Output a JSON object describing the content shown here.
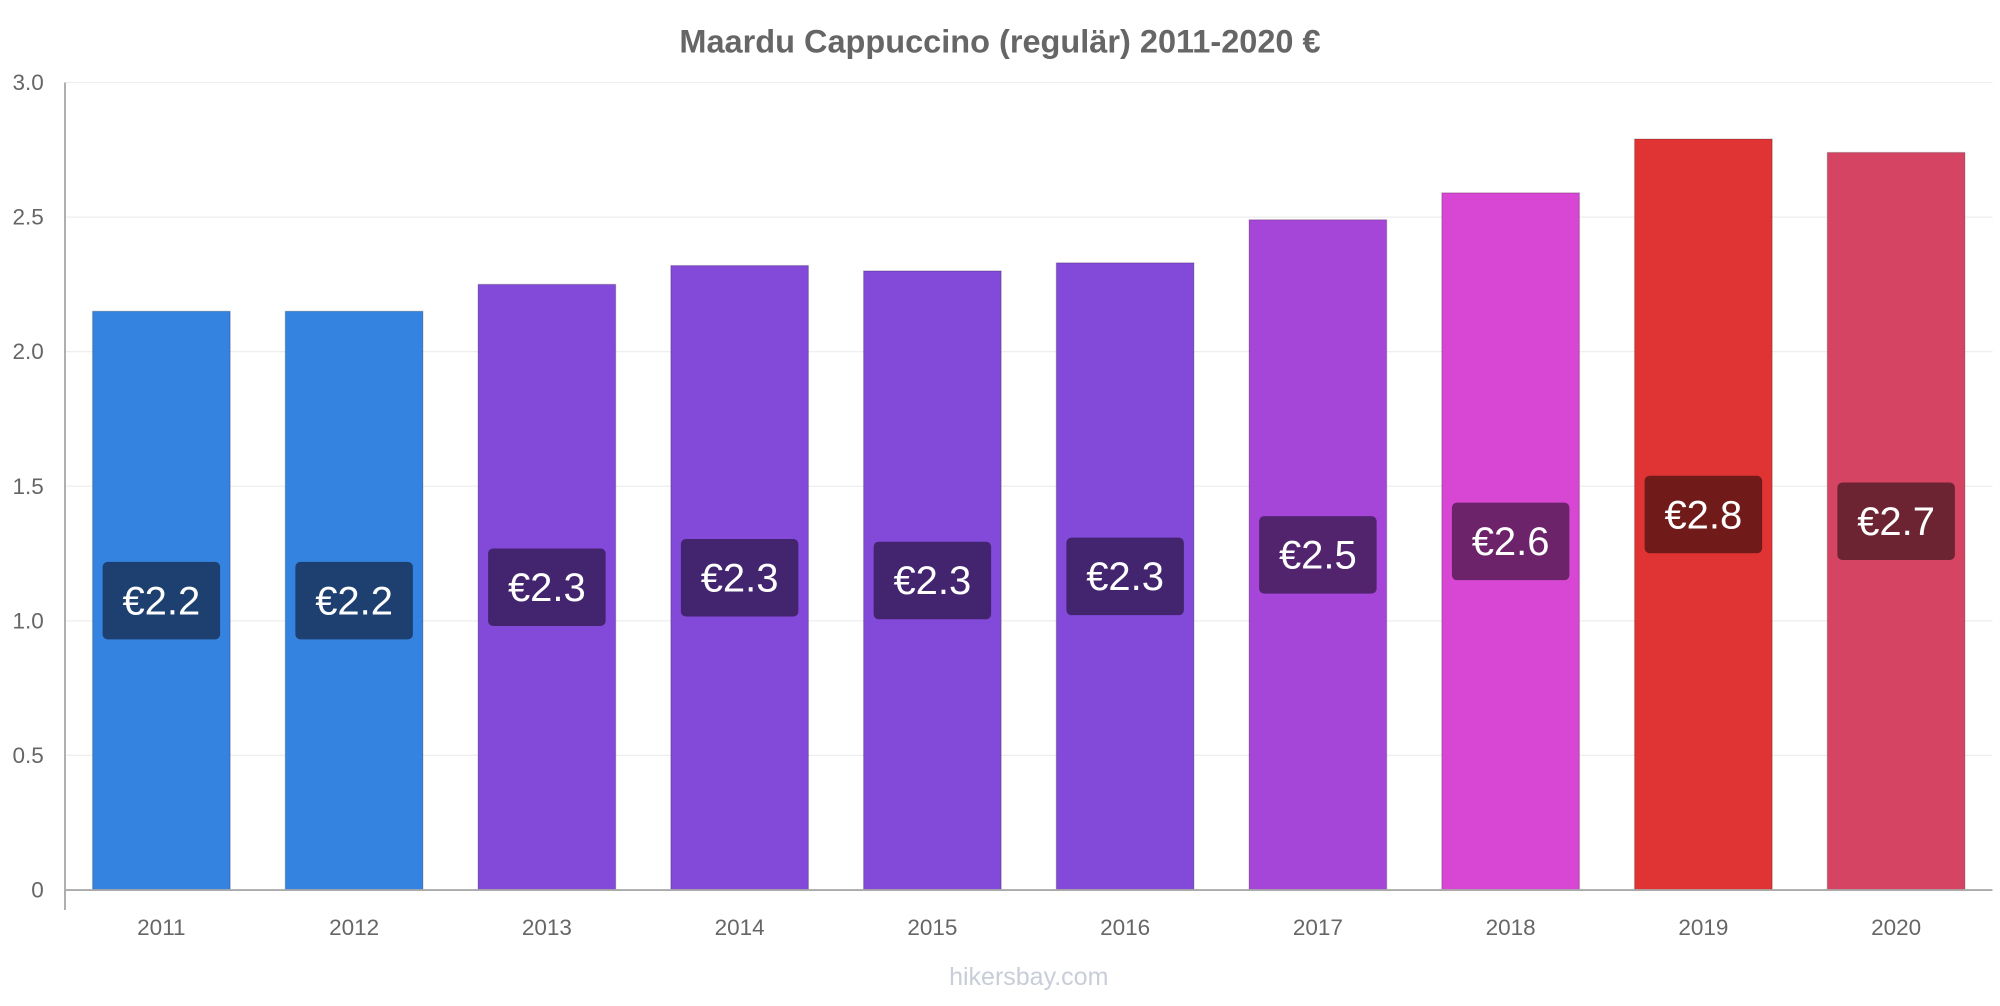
{
  "chart_data": {
    "type": "bar",
    "title": "Maardu Cappuccino (regulär) 2011-2020 €",
    "xlabel": "",
    "ylabel": "",
    "categories": [
      "2011",
      "2012",
      "2013",
      "2014",
      "2015",
      "2016",
      "2017",
      "2018",
      "2019",
      "2020"
    ],
    "values": [
      2.15,
      2.15,
      2.25,
      2.32,
      2.3,
      2.33,
      2.49,
      2.59,
      2.79,
      2.74
    ],
    "data_labels": [
      "€2.2",
      "€2.2",
      "€2.3",
      "€2.3",
      "€2.3",
      "€2.3",
      "€2.5",
      "€2.6",
      "€2.8",
      "€2.7"
    ],
    "ylim": [
      0,
      3.0
    ],
    "yticks": [
      0,
      0.5,
      1.0,
      1.5,
      2.0,
      2.5,
      3.0
    ],
    "ytick_labels": [
      "0",
      "0.5",
      "1.0",
      "1.5",
      "2.0",
      "2.5",
      "3.0"
    ],
    "grid": true,
    "bar_colors": [
      "#3583e0",
      "#3583e0",
      "#8349d9",
      "#8349d9",
      "#8349d9",
      "#8349d9",
      "#a646d9",
      "#d747d3",
      "#e03434",
      "#d54563"
    ],
    "label_box_colors": [
      "#1d4070",
      "#1d4070",
      "#43246f",
      "#43246f",
      "#43246f",
      "#43246f",
      "#52246e",
      "#6c236a",
      "#701a1a",
      "#6c2432"
    ]
  },
  "watermark": "hikersbay.com"
}
